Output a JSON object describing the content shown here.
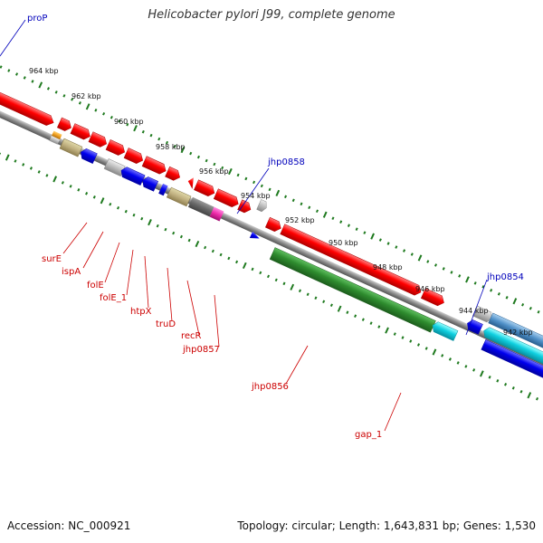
{
  "title": "Helicobacter pylori J99, complete genome",
  "footer": {
    "accession": "Accession: NC_000921",
    "summary": "Topology: circular; Length: 1,643,831 bp; Genes: 1,530"
  },
  "scale_labels": [
    "964 kbp",
    "962 kbp",
    "960 kbp",
    "958 kbp",
    "956 kbp",
    "954 kbp",
    "952 kbp",
    "950 kbp",
    "948 kbp",
    "946 kbp",
    "944 kbp",
    "942 kbp"
  ],
  "gene_labels_blue": [
    "proP",
    "jhp0858",
    "jhp0854"
  ],
  "gene_labels_red": [
    "surE",
    "ispA",
    "folE",
    "folE_1",
    "htpX",
    "truD",
    "recR",
    "jhp0857",
    "jhp0856",
    "gap_1"
  ],
  "colors": {
    "forward_cds": "#ff0000",
    "reverse_cds": "#0000ee",
    "rna": "#2e8b2e",
    "backbone": "#888888",
    "tick": "#1f7a1f"
  }
}
